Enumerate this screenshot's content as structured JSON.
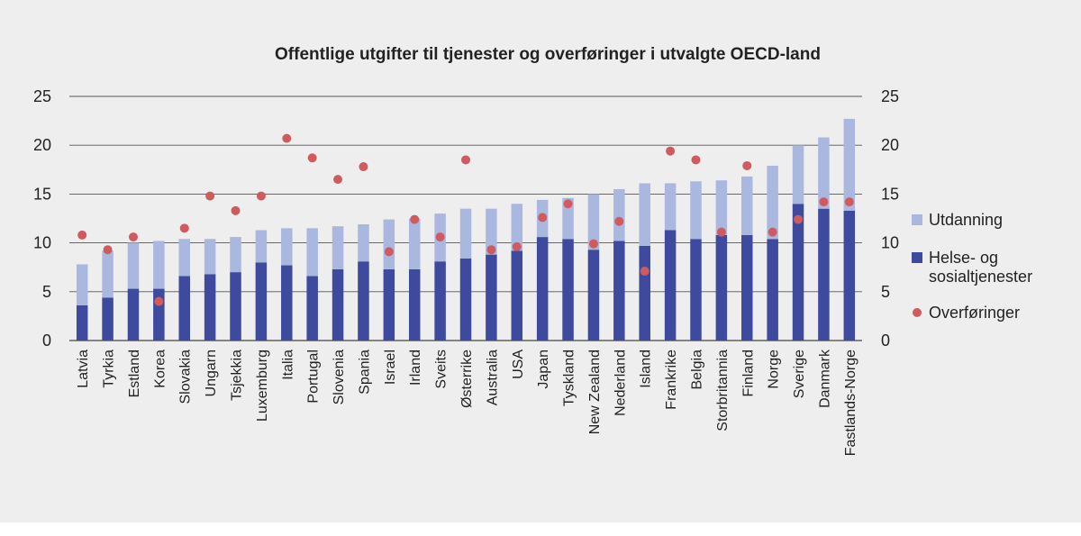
{
  "chart_data": {
    "type": "bar",
    "stacked": true,
    "title": "Offentlige utgifter til tjenester og overføringer i utvalgte OECD-land",
    "xlabel": "",
    "ylabel": "",
    "ylim": [
      0,
      25
    ],
    "yticks": [
      "0",
      "5",
      "10",
      "15",
      "20",
      "25"
    ],
    "grid": "horizontal",
    "legend_position": "right",
    "categories": [
      "Latvia",
      "Tyrkia",
      "Estland",
      "Korea",
      "Slovakia",
      "Ungarn",
      "Tsjekkia",
      "Luxemburg",
      "Italia",
      "Portugal",
      "Slovenia",
      "Spania",
      "Israel",
      "Irland",
      "Sveits",
      "Østerrike",
      "Australia",
      "USA",
      "Japan",
      "Tyskland",
      "New Zealand",
      "Nederland",
      "Island",
      "Frankrike",
      "Belgia",
      "Storbritannia",
      "Finland",
      "Norge",
      "Sverige",
      "Danmark",
      "Fastlands-Norge"
    ],
    "series": [
      {
        "name": "Helse- og sosialtjenester",
        "kind": "bar",
        "color": "#3e4a9e",
        "values": [
          3.6,
          4.4,
          5.3,
          5.3,
          6.6,
          6.8,
          7.0,
          8.0,
          7.7,
          6.6,
          7.3,
          8.1,
          7.3,
          7.3,
          8.1,
          8.4,
          8.8,
          9.2,
          10.6,
          10.4,
          9.3,
          10.2,
          9.7,
          11.3,
          10.4,
          10.8,
          10.8,
          10.4,
          14.0,
          13.5,
          13.3
        ]
      },
      {
        "name": "Utdanning",
        "kind": "bar",
        "color": "#aab8e0",
        "values": [
          4.2,
          4.8,
          4.7,
          4.9,
          3.8,
          3.6,
          3.6,
          3.3,
          3.8,
          4.9,
          4.4,
          3.8,
          5.1,
          5.2,
          4.9,
          5.1,
          4.7,
          4.8,
          3.8,
          4.2,
          5.7,
          5.3,
          6.4,
          4.8,
          5.9,
          5.6,
          6.0,
          7.5,
          6.0,
          7.3,
          9.4
        ]
      },
      {
        "name": "Overføringer",
        "kind": "scatter",
        "color": "#cf5b5f",
        "values": [
          10.8,
          9.3,
          10.6,
          4.0,
          11.5,
          14.8,
          13.3,
          14.8,
          20.7,
          18.7,
          16.5,
          17.8,
          9.1,
          12.4,
          10.6,
          18.5,
          9.3,
          9.6,
          12.6,
          14.0,
          9.9,
          12.2,
          7.1,
          19.4,
          18.5,
          11.1,
          17.9,
          11.1,
          12.4,
          14.2,
          14.2
        ]
      }
    ],
    "legend_order": [
      1,
      0,
      2
    ],
    "legend": [
      {
        "lines": [
          "Utdanning"
        ],
        "color": "#aab8e0",
        "shape": "square"
      },
      {
        "lines": [
          "Helse- og",
          "sosialtjenester"
        ],
        "color": "#3e4a9e",
        "shape": "square"
      },
      {
        "lines": [
          "Overføringer"
        ],
        "color": "#cf5b5f",
        "shape": "circle"
      }
    ]
  }
}
